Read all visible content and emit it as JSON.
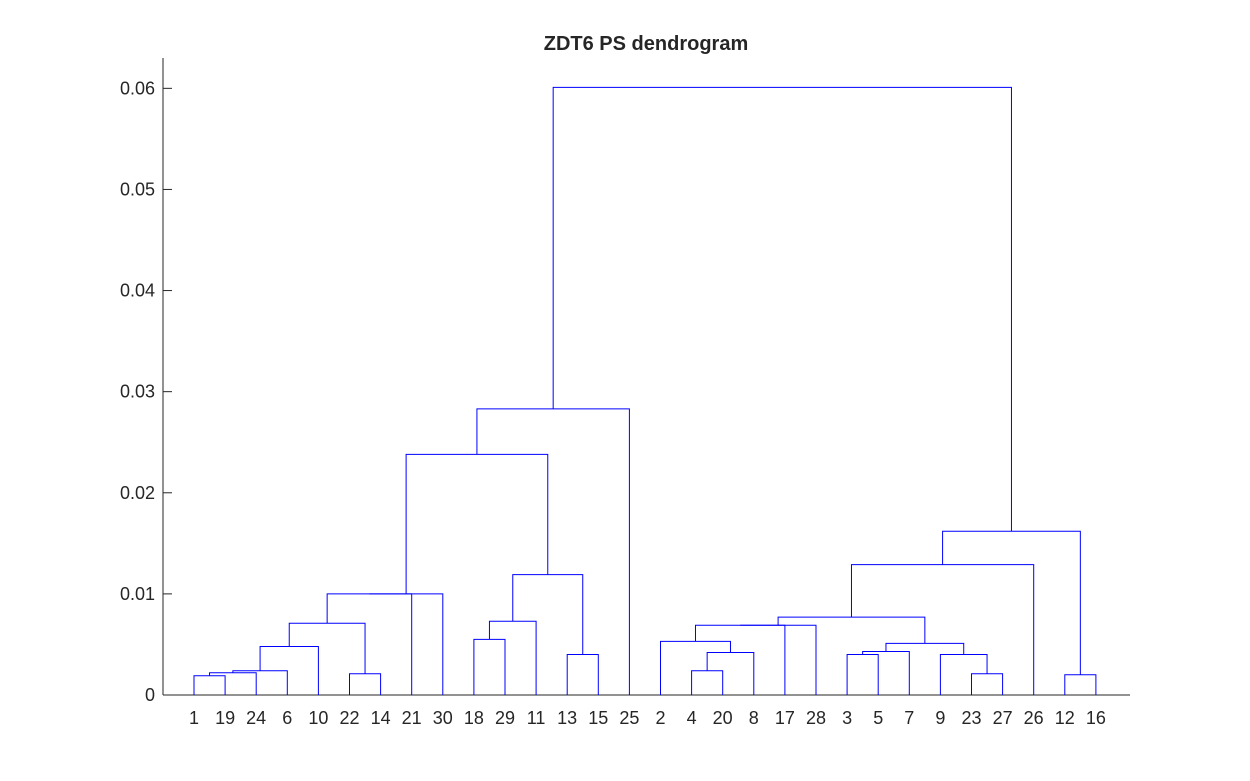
{
  "chart_data": {
    "type": "dendrogram",
    "title": "ZDT6 PS dendrogram",
    "xlabel": "",
    "ylabel": "",
    "ylim": [
      0,
      0.063
    ],
    "yticks": [
      0,
      0.01,
      0.02,
      0.03,
      0.04,
      0.05,
      0.06
    ],
    "ytick_labels": [
      "0",
      "0.01",
      "0.02",
      "0.03",
      "0.04",
      "0.05",
      "0.06"
    ],
    "leaf_order": [
      "1",
      "19",
      "24",
      "6",
      "10",
      "22",
      "14",
      "21",
      "30",
      "18",
      "29",
      "11",
      "13",
      "15",
      "25",
      "2",
      "4",
      "20",
      "8",
      "17",
      "28",
      "3",
      "5",
      "7",
      "9",
      "23",
      "27",
      "26",
      "12",
      "16"
    ],
    "link_color": "#0000ff",
    "axis_color": "#262626",
    "merges": [
      {
        "left": "1",
        "right": "19",
        "height": 0.0019
      },
      {
        "left": "1|19",
        "right": "24",
        "height": 0.0022
      },
      {
        "left": "1|19|24",
        "right": "6",
        "height": 0.0024
      },
      {
        "left": "1|19|24|6",
        "right": "10",
        "height": 0.0048
      },
      {
        "left": "22",
        "right": "14",
        "height": 0.0021
      },
      {
        "left": "1|19|24|6|10",
        "right": "22|14",
        "height": 0.0071
      },
      {
        "left": "1|19|24|6|10|22|14",
        "right": "21",
        "height": 0.01
      },
      {
        "left": "1|19|24|6|10|22|14|21",
        "right": "30",
        "height": 0.01
      },
      {
        "left": "18",
        "right": "29",
        "height": 0.0055
      },
      {
        "left": "18|29",
        "right": "11",
        "height": 0.0073
      },
      {
        "left": "13",
        "right": "15",
        "height": 0.004
      },
      {
        "left": "18|29|11",
        "right": "13|15",
        "height": 0.0119
      },
      {
        "left": "1|19|24|6|10|22|14|21|30",
        "right": "18|29|11|13|15",
        "height": 0.0238
      },
      {
        "left": "1|19|24|6|10|22|14|21|30|18|29|11|13|15",
        "right": "25",
        "height": 0.0283
      },
      {
        "left": "4",
        "right": "20",
        "height": 0.0024
      },
      {
        "left": "4|20",
        "right": "8",
        "height": 0.0042
      },
      {
        "left": "2",
        "right": "4|20|8",
        "height": 0.0053
      },
      {
        "left": "2|4|20|8",
        "right": "17",
        "height": 0.0069
      },
      {
        "left": "3",
        "right": "5",
        "height": 0.004
      },
      {
        "left": "3|5",
        "right": "7",
        "height": 0.0043
      },
      {
        "left": "23",
        "right": "27",
        "height": 0.0021
      },
      {
        "left": "9",
        "right": "23|27",
        "height": 0.004
      },
      {
        "left": "3|5|7",
        "right": "9|23|27",
        "height": 0.0051
      },
      {
        "left": "2|4|20|8|17",
        "right": "28",
        "height": 0.0069
      },
      {
        "left": "2|4|20|8|17|28",
        "right": "3|5|7|9|23|27",
        "height": 0.0077
      },
      {
        "left": "2|4|20|8|17|28|3|5|7|9|23|27",
        "right": "26",
        "height": 0.0129
      },
      {
        "left": "12",
        "right": "16",
        "height": 0.002
      },
      {
        "left": "2|4|20|8|17|28|3|5|7|9|23|27|26",
        "right": "12|16",
        "height": 0.0162
      },
      {
        "left": "1|19|24|6|10|22|14|21|30|18|29|11|13|15|25",
        "right": "2|4|20|8|17|28|3|5|7|9|23|27|26|12|16",
        "height": 0.0601
      }
    ]
  }
}
